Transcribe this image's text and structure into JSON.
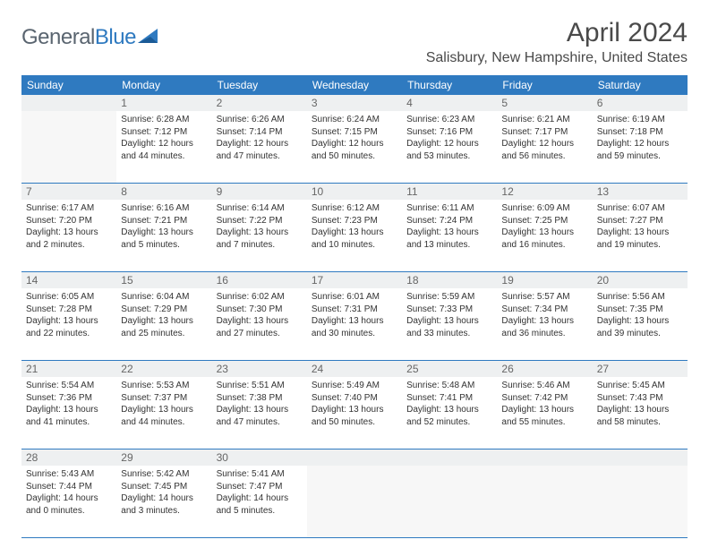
{
  "brand": {
    "text1": "General",
    "text2": "Blue"
  },
  "title": "April 2024",
  "location": "Salisbury, New Hampshire, United States",
  "colors": {
    "header_bg": "#2f7ac0",
    "header_text": "#ffffff",
    "border": "#2f7ac0",
    "daynum_bg": "#eef0f1",
    "empty_bg": "#f7f7f7",
    "text": "#333333",
    "brand_gray": "#5a6570",
    "brand_blue": "#2f7ac0"
  },
  "day_headers": [
    "Sunday",
    "Monday",
    "Tuesday",
    "Wednesday",
    "Thursday",
    "Friday",
    "Saturday"
  ],
  "weeks": [
    [
      {
        "n": "",
        "empty": true
      },
      {
        "n": "1",
        "sr": "6:28 AM",
        "ss": "7:12 PM",
        "dl": "12 hours and 44 minutes."
      },
      {
        "n": "2",
        "sr": "6:26 AM",
        "ss": "7:14 PM",
        "dl": "12 hours and 47 minutes."
      },
      {
        "n": "3",
        "sr": "6:24 AM",
        "ss": "7:15 PM",
        "dl": "12 hours and 50 minutes."
      },
      {
        "n": "4",
        "sr": "6:23 AM",
        "ss": "7:16 PM",
        "dl": "12 hours and 53 minutes."
      },
      {
        "n": "5",
        "sr": "6:21 AM",
        "ss": "7:17 PM",
        "dl": "12 hours and 56 minutes."
      },
      {
        "n": "6",
        "sr": "6:19 AM",
        "ss": "7:18 PM",
        "dl": "12 hours and 59 minutes."
      }
    ],
    [
      {
        "n": "7",
        "sr": "6:17 AM",
        "ss": "7:20 PM",
        "dl": "13 hours and 2 minutes."
      },
      {
        "n": "8",
        "sr": "6:16 AM",
        "ss": "7:21 PM",
        "dl": "13 hours and 5 minutes."
      },
      {
        "n": "9",
        "sr": "6:14 AM",
        "ss": "7:22 PM",
        "dl": "13 hours and 7 minutes."
      },
      {
        "n": "10",
        "sr": "6:12 AM",
        "ss": "7:23 PM",
        "dl": "13 hours and 10 minutes."
      },
      {
        "n": "11",
        "sr": "6:11 AM",
        "ss": "7:24 PM",
        "dl": "13 hours and 13 minutes."
      },
      {
        "n": "12",
        "sr": "6:09 AM",
        "ss": "7:25 PM",
        "dl": "13 hours and 16 minutes."
      },
      {
        "n": "13",
        "sr": "6:07 AM",
        "ss": "7:27 PM",
        "dl": "13 hours and 19 minutes."
      }
    ],
    [
      {
        "n": "14",
        "sr": "6:05 AM",
        "ss": "7:28 PM",
        "dl": "13 hours and 22 minutes."
      },
      {
        "n": "15",
        "sr": "6:04 AM",
        "ss": "7:29 PM",
        "dl": "13 hours and 25 minutes."
      },
      {
        "n": "16",
        "sr": "6:02 AM",
        "ss": "7:30 PM",
        "dl": "13 hours and 27 minutes."
      },
      {
        "n": "17",
        "sr": "6:01 AM",
        "ss": "7:31 PM",
        "dl": "13 hours and 30 minutes."
      },
      {
        "n": "18",
        "sr": "5:59 AM",
        "ss": "7:33 PM",
        "dl": "13 hours and 33 minutes."
      },
      {
        "n": "19",
        "sr": "5:57 AM",
        "ss": "7:34 PM",
        "dl": "13 hours and 36 minutes."
      },
      {
        "n": "20",
        "sr": "5:56 AM",
        "ss": "7:35 PM",
        "dl": "13 hours and 39 minutes."
      }
    ],
    [
      {
        "n": "21",
        "sr": "5:54 AM",
        "ss": "7:36 PM",
        "dl": "13 hours and 41 minutes."
      },
      {
        "n": "22",
        "sr": "5:53 AM",
        "ss": "7:37 PM",
        "dl": "13 hours and 44 minutes."
      },
      {
        "n": "23",
        "sr": "5:51 AM",
        "ss": "7:38 PM",
        "dl": "13 hours and 47 minutes."
      },
      {
        "n": "24",
        "sr": "5:49 AM",
        "ss": "7:40 PM",
        "dl": "13 hours and 50 minutes."
      },
      {
        "n": "25",
        "sr": "5:48 AM",
        "ss": "7:41 PM",
        "dl": "13 hours and 52 minutes."
      },
      {
        "n": "26",
        "sr": "5:46 AM",
        "ss": "7:42 PM",
        "dl": "13 hours and 55 minutes."
      },
      {
        "n": "27",
        "sr": "5:45 AM",
        "ss": "7:43 PM",
        "dl": "13 hours and 58 minutes."
      }
    ],
    [
      {
        "n": "28",
        "sr": "5:43 AM",
        "ss": "7:44 PM",
        "dl": "14 hours and 0 minutes."
      },
      {
        "n": "29",
        "sr": "5:42 AM",
        "ss": "7:45 PM",
        "dl": "14 hours and 3 minutes."
      },
      {
        "n": "30",
        "sr": "5:41 AM",
        "ss": "7:47 PM",
        "dl": "14 hours and 5 minutes."
      },
      {
        "n": "",
        "empty": true
      },
      {
        "n": "",
        "empty": true
      },
      {
        "n": "",
        "empty": true
      },
      {
        "n": "",
        "empty": true
      }
    ]
  ],
  "labels": {
    "sunrise": "Sunrise:",
    "sunset": "Sunset:",
    "daylight": "Daylight:"
  }
}
